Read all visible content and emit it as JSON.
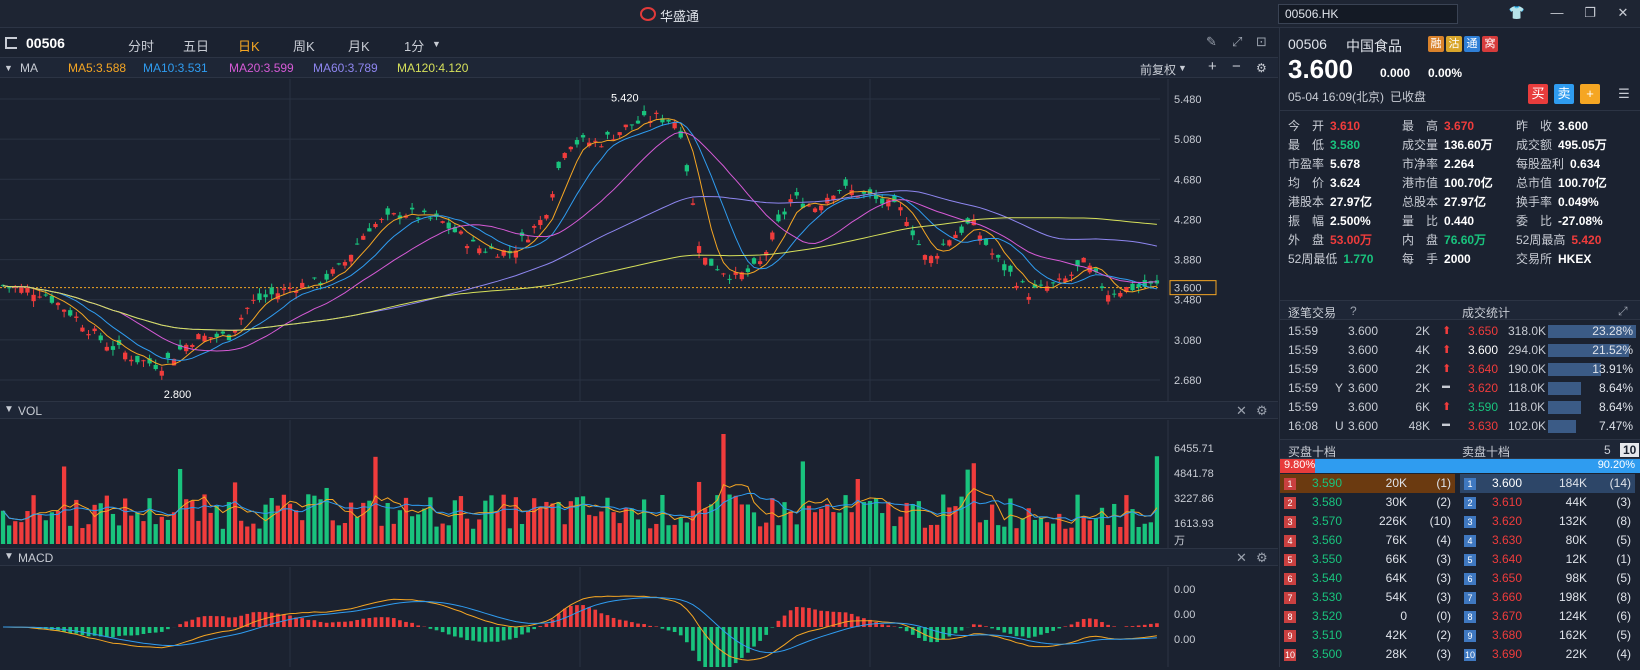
{
  "app": {
    "title": "华盛通",
    "search_value": "00506.HK"
  },
  "toolbar": {
    "code": "00506",
    "tabs": [
      "分时",
      "五日",
      "日K",
      "周K",
      "月K",
      "1分"
    ],
    "active_tab": "日K",
    "adjust": "前复权"
  },
  "ma_bar": {
    "label": "MA",
    "items": [
      {
        "text": "MA5:3.588",
        "color": "#f5a623"
      },
      {
        "text": "MA10:3.531",
        "color": "#2f9cf0"
      },
      {
        "text": "MA20:3.599",
        "color": "#d65ad6"
      },
      {
        "text": "MA60:3.789",
        "color": "#8e86f0"
      },
      {
        "text": "MA120:4.120",
        "color": "#d6e05a"
      }
    ]
  },
  "price_axis": [
    "5.480",
    "5.080",
    "4.680",
    "4.280",
    "3.880",
    "3.600",
    "3.480",
    "3.080",
    "2.680"
  ],
  "annotations": {
    "high": "5.420",
    "low": "2.800"
  },
  "vol": {
    "label": "VOL",
    "axis": [
      "6455.71",
      "4841.78",
      "3227.86",
      "1613.93",
      "万"
    ]
  },
  "macd": {
    "label": "MACD",
    "axis": [
      "0.00",
      "0.00",
      "0.00"
    ]
  },
  "quote": {
    "code": "00506",
    "name": "中国食品",
    "badges": [
      "融",
      "沽",
      "通",
      "窝"
    ],
    "price": "3.600",
    "change": "0.000",
    "change_pct": "0.00%",
    "time": "05-04  16:09(北京)",
    "state": "已收盘",
    "actions": [
      "买",
      "卖",
      "+"
    ],
    "fields": [
      [
        "今　开",
        "3.610",
        "red"
      ],
      [
        "最　高",
        "3.670",
        "red"
      ],
      [
        "昨　收",
        "3.600",
        "white"
      ],
      [
        "最　低",
        "3.580",
        "green"
      ],
      [
        "成交量",
        "136.60万",
        "white"
      ],
      [
        "成交额",
        "495.05万",
        "white"
      ],
      [
        "市盈率",
        "5.678",
        "white"
      ],
      [
        "市净率",
        "2.264",
        "white"
      ],
      [
        "每股盈利",
        "0.634",
        "white"
      ],
      [
        "均　价",
        "3.624",
        "white"
      ],
      [
        "港市值",
        "100.70亿",
        "white"
      ],
      [
        "总市值",
        "100.70亿",
        "white"
      ],
      [
        "港股本",
        "27.97亿",
        "white"
      ],
      [
        "总股本",
        "27.97亿",
        "white"
      ],
      [
        "换手率",
        "0.049%",
        "white"
      ],
      [
        "振　幅",
        "2.500%",
        "white"
      ],
      [
        "量　比",
        "0.440",
        "white"
      ],
      [
        "委　比",
        "-27.08%",
        "white"
      ],
      [
        "外　盘",
        "53.00万",
        "red"
      ],
      [
        "内　盘",
        "76.60万",
        "green"
      ],
      [
        "52周最高",
        "5.420",
        "red"
      ],
      [
        "52周最低",
        "1.770",
        "green"
      ],
      [
        "每　手",
        "2000",
        "white"
      ],
      [
        "交易所",
        "HKEX",
        "white"
      ]
    ]
  },
  "trades": {
    "title": "逐笔交易",
    "stats_title": "成交统计",
    "rows": [
      {
        "t": "15:59",
        "flag": "",
        "p": "3.600",
        "v": "2K",
        "dir": "up",
        "sp": "3.650",
        "spc": "red",
        "sv": "318.0K",
        "pct": "23.28%",
        "frac": 1.0
      },
      {
        "t": "15:59",
        "flag": "",
        "p": "3.600",
        "v": "4K",
        "dir": "up",
        "sp": "3.600",
        "spc": "white",
        "sv": "294.0K",
        "pct": "21.52%",
        "frac": 0.92
      },
      {
        "t": "15:59",
        "flag": "",
        "p": "3.600",
        "v": "2K",
        "dir": "up",
        "sp": "3.640",
        "spc": "red",
        "sv": "190.0K",
        "pct": "13.91%",
        "frac": 0.6
      },
      {
        "t": "15:59",
        "flag": "Y",
        "p": "3.600",
        "v": "2K",
        "dir": "flat",
        "sp": "3.620",
        "spc": "red",
        "sv": "118.0K",
        "pct": "8.64%",
        "frac": 0.37
      },
      {
        "t": "15:59",
        "flag": "",
        "p": "3.600",
        "v": "6K",
        "dir": "up",
        "sp": "3.590",
        "spc": "green",
        "sv": "118.0K",
        "pct": "8.64%",
        "frac": 0.37
      },
      {
        "t": "16:08",
        "flag": "U",
        "p": "3.600",
        "v": "48K",
        "dir": "flat",
        "sp": "3.630",
        "spc": "red",
        "sv": "102.0K",
        "pct": "7.47%",
        "frac": 0.32
      }
    ]
  },
  "orderbook": {
    "buy_title": "买盘十档",
    "sell_title": "卖盘十档",
    "depth": [
      "5",
      "10"
    ],
    "buy_pct": "9.80%",
    "sell_pct": "90.20%",
    "buy_frac": 0.098,
    "bids": [
      [
        "1",
        "3.590",
        "20K",
        "(1)"
      ],
      [
        "2",
        "3.580",
        "30K",
        "(2)"
      ],
      [
        "3",
        "3.570",
        "226K",
        "(10)"
      ],
      [
        "4",
        "3.560",
        "76K",
        "(4)"
      ],
      [
        "5",
        "3.550",
        "66K",
        "(3)"
      ],
      [
        "6",
        "3.540",
        "64K",
        "(3)"
      ],
      [
        "7",
        "3.530",
        "54K",
        "(3)"
      ],
      [
        "8",
        "3.520",
        "0",
        "(0)"
      ],
      [
        "9",
        "3.510",
        "42K",
        "(2)"
      ],
      [
        "10",
        "3.500",
        "28K",
        "(3)"
      ]
    ],
    "asks": [
      [
        "1",
        "3.600",
        "184K",
        "(14)"
      ],
      [
        "2",
        "3.610",
        "44K",
        "(3)"
      ],
      [
        "3",
        "3.620",
        "132K",
        "(8)"
      ],
      [
        "4",
        "3.630",
        "80K",
        "(5)"
      ],
      [
        "5",
        "3.640",
        "12K",
        "(1)"
      ],
      [
        "6",
        "3.650",
        "98K",
        "(5)"
      ],
      [
        "7",
        "3.660",
        "198K",
        "(8)"
      ],
      [
        "8",
        "3.670",
        "124K",
        "(6)"
      ],
      [
        "9",
        "3.680",
        "162K",
        "(5)"
      ],
      [
        "10",
        "3.690",
        "22K",
        "(4)"
      ]
    ]
  }
}
